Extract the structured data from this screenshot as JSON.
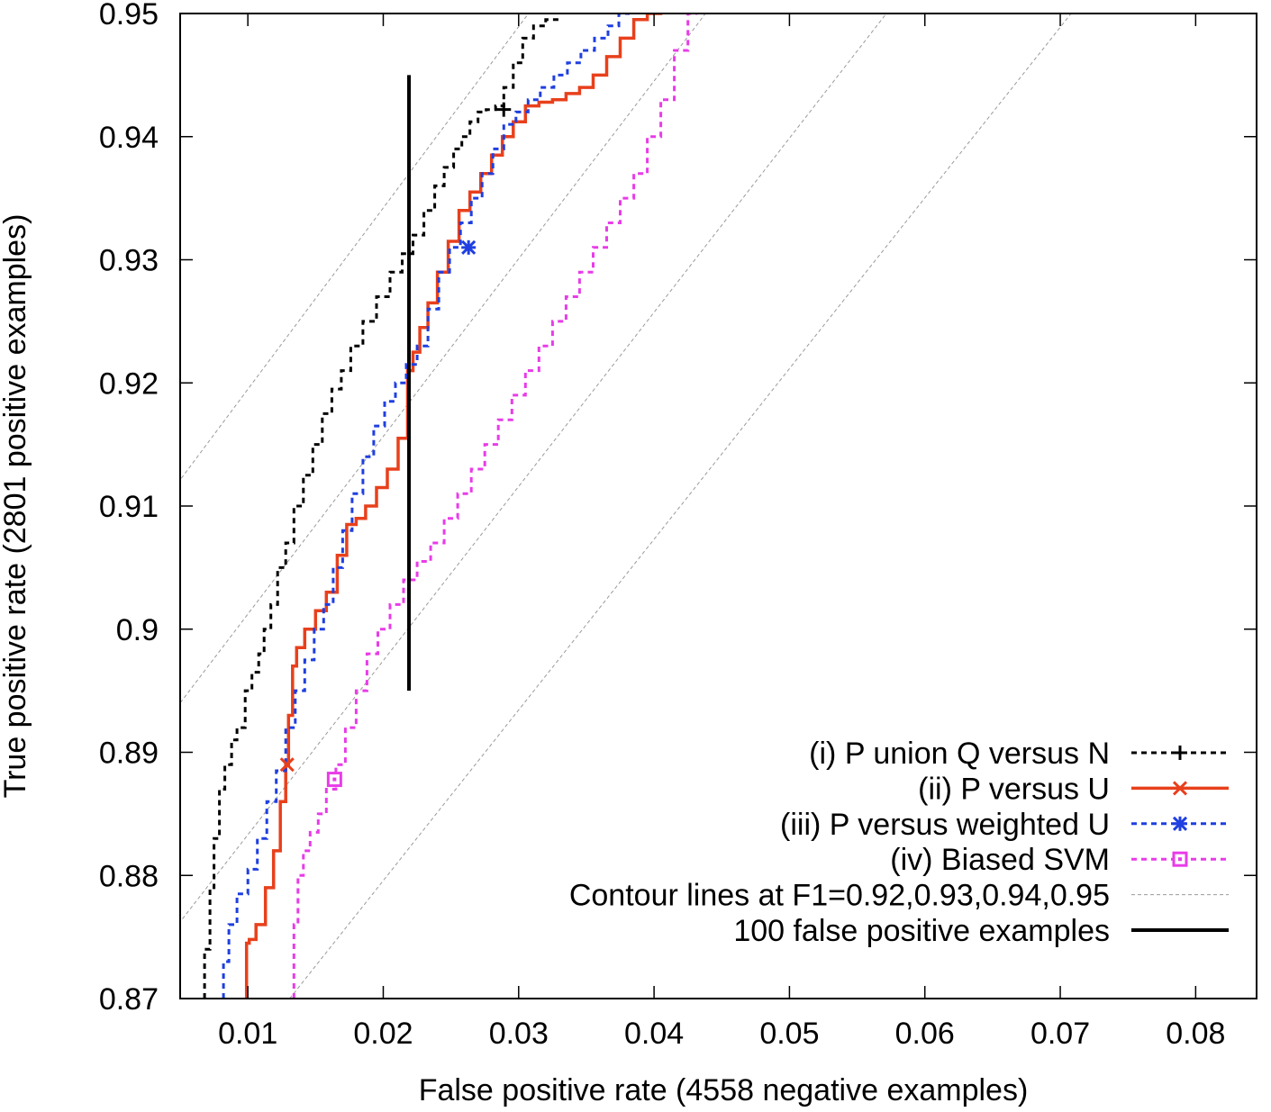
{
  "chart_data": {
    "type": "line",
    "title": "",
    "xlabel": "False positive rate (4558 negative examples)",
    "ylabel": "True positive rate (2801 positive examples)",
    "xlim": [
      0.005,
      0.0845
    ],
    "ylim": [
      0.87,
      0.95
    ],
    "xticks": [
      0.01,
      0.02,
      0.03,
      0.04,
      0.05,
      0.06,
      0.07,
      0.08
    ],
    "yticks": [
      0.87,
      0.88,
      0.89,
      0.9,
      0.91,
      0.92,
      0.93,
      0.94,
      0.95
    ],
    "xtick_labels": [
      "0.01",
      "0.02",
      "0.03",
      "0.04",
      "0.05",
      "0.06",
      "0.07",
      "0.08"
    ],
    "ytick_labels": [
      "0.87",
      "0.88",
      "0.89",
      "0.9",
      "0.91",
      "0.92",
      "0.93",
      "0.94",
      "0.95"
    ],
    "legend_position": "bottom-right",
    "series": [
      {
        "name": "(i) P union Q versus N",
        "color": "#000000",
        "style": "dotted",
        "marker": "plus",
        "marker_point": [
          0.0289,
          0.9422
        ],
        "x": [
          0.0068,
          0.0072,
          0.0075,
          0.0079,
          0.0083,
          0.0088,
          0.0092,
          0.0098,
          0.0103,
          0.0108,
          0.0112,
          0.0117,
          0.0122,
          0.0128,
          0.0134,
          0.0141,
          0.0148,
          0.0155,
          0.0162,
          0.0169,
          0.0176,
          0.0185,
          0.0195,
          0.0205,
          0.0214,
          0.0222,
          0.023,
          0.0238,
          0.0245,
          0.0252,
          0.0258,
          0.0264,
          0.027,
          0.0276,
          0.0283,
          0.0289,
          0.0296,
          0.0303,
          0.0311,
          0.032,
          0.033
        ],
        "y": [
          0.87,
          0.874,
          0.879,
          0.883,
          0.887,
          0.889,
          0.891,
          0.892,
          0.895,
          0.8965,
          0.898,
          0.9,
          0.902,
          0.905,
          0.907,
          0.91,
          0.9125,
          0.915,
          0.9175,
          0.9195,
          0.921,
          0.923,
          0.925,
          0.927,
          0.929,
          0.9305,
          0.932,
          0.934,
          0.936,
          0.9375,
          0.939,
          0.94,
          0.9412,
          0.942,
          0.9422,
          0.9425,
          0.944,
          0.946,
          0.948,
          0.949,
          0.9495
        ]
      },
      {
        "name": "(ii) P versus U",
        "color": "#e8401c",
        "style": "solid",
        "marker": "cross",
        "marker_point": [
          0.0129,
          0.889
        ],
        "x": [
          0.0099,
          0.0101,
          0.0106,
          0.0113,
          0.0119,
          0.0124,
          0.0128,
          0.013,
          0.0133,
          0.0136,
          0.0142,
          0.015,
          0.0158,
          0.0166,
          0.0173,
          0.018,
          0.0187,
          0.0195,
          0.0203,
          0.0211,
          0.0218,
          0.0222,
          0.0227,
          0.0233,
          0.024,
          0.0248,
          0.0256,
          0.0264,
          0.0272,
          0.028,
          0.0288,
          0.0296,
          0.0305,
          0.0315,
          0.0325,
          0.0335,
          0.0345,
          0.0355,
          0.0365,
          0.0375,
          0.0385,
          0.0395,
          0.0405,
          0.0412
        ],
        "y": [
          0.87,
          0.8745,
          0.8748,
          0.876,
          0.879,
          0.882,
          0.886,
          0.889,
          0.893,
          0.897,
          0.8985,
          0.9,
          0.9015,
          0.903,
          0.906,
          0.9085,
          0.909,
          0.91,
          0.9115,
          0.913,
          0.9155,
          0.921,
          0.9225,
          0.9245,
          0.9265,
          0.929,
          0.9315,
          0.934,
          0.9355,
          0.937,
          0.9385,
          0.94,
          0.9412,
          0.9425,
          0.9428,
          0.943,
          0.9435,
          0.944,
          0.945,
          0.9465,
          0.948,
          0.9495,
          0.95,
          0.9505
        ]
      },
      {
        "name": "(iii) P versus weighted U",
        "color": "#1f3fe0",
        "style": "dotted",
        "marker": "star",
        "marker_point": [
          0.0263,
          0.931
        ],
        "x": [
          0.0082,
          0.0086,
          0.0092,
          0.01,
          0.0107,
          0.0114,
          0.0121,
          0.0128,
          0.0135,
          0.0142,
          0.0149,
          0.0156,
          0.0163,
          0.017,
          0.0177,
          0.0185,
          0.0193,
          0.0201,
          0.0209,
          0.0217,
          0.0225,
          0.0233,
          0.0241,
          0.0249,
          0.0257,
          0.0265,
          0.0273,
          0.0281,
          0.0289,
          0.0298,
          0.0307,
          0.0316,
          0.0326,
          0.0336,
          0.0346,
          0.0356,
          0.0366,
          0.0374,
          0.0382
        ],
        "y": [
          0.87,
          0.873,
          0.876,
          0.8785,
          0.8805,
          0.883,
          0.886,
          0.8885,
          0.892,
          0.895,
          0.8975,
          0.9,
          0.902,
          0.905,
          0.908,
          0.911,
          0.914,
          0.9165,
          0.9185,
          0.92,
          0.9215,
          0.923,
          0.926,
          0.929,
          0.931,
          0.933,
          0.935,
          0.937,
          0.939,
          0.941,
          0.942,
          0.943,
          0.944,
          0.945,
          0.946,
          0.947,
          0.948,
          0.949,
          0.95
        ]
      },
      {
        "name": "(iv) Biased SVM",
        "color": "#e83ce8",
        "style": "dotted",
        "marker": "square",
        "marker_point": [
          0.0164,
          0.8878
        ],
        "x": [
          0.0134,
          0.0137,
          0.0141,
          0.0146,
          0.0152,
          0.0158,
          0.0165,
          0.0172,
          0.018,
          0.0188,
          0.0196,
          0.0205,
          0.0215,
          0.0225,
          0.0235,
          0.0245,
          0.0255,
          0.0265,
          0.0275,
          0.0285,
          0.0295,
          0.0305,
          0.0315,
          0.0325,
          0.0335,
          0.0345,
          0.0355,
          0.0365,
          0.0375,
          0.0385,
          0.0395,
          0.0405,
          0.0415,
          0.0425,
          0.0432
        ],
        "y": [
          0.87,
          0.876,
          0.88,
          0.882,
          0.8835,
          0.885,
          0.887,
          0.889,
          0.892,
          0.895,
          0.898,
          0.9,
          0.902,
          0.904,
          0.9055,
          0.907,
          0.909,
          0.911,
          0.913,
          0.915,
          0.917,
          0.919,
          0.921,
          0.923,
          0.925,
          0.927,
          0.929,
          0.931,
          0.933,
          0.935,
          0.937,
          0.94,
          0.943,
          0.947,
          0.95
        ]
      }
    ],
    "contours": {
      "name": "Contour lines at F1=0.92,0.93,0.94,0.95",
      "color": "#9a9a9a",
      "f1_values": [
        0.92,
        0.93,
        0.94,
        0.95
      ],
      "n_positive": 2801,
      "n_negative": 4558
    },
    "vertical_marker": {
      "name": "100 false positive examples",
      "color": "#000000",
      "x": 0.0219,
      "y_range": [
        0.895,
        0.945
      ]
    }
  }
}
